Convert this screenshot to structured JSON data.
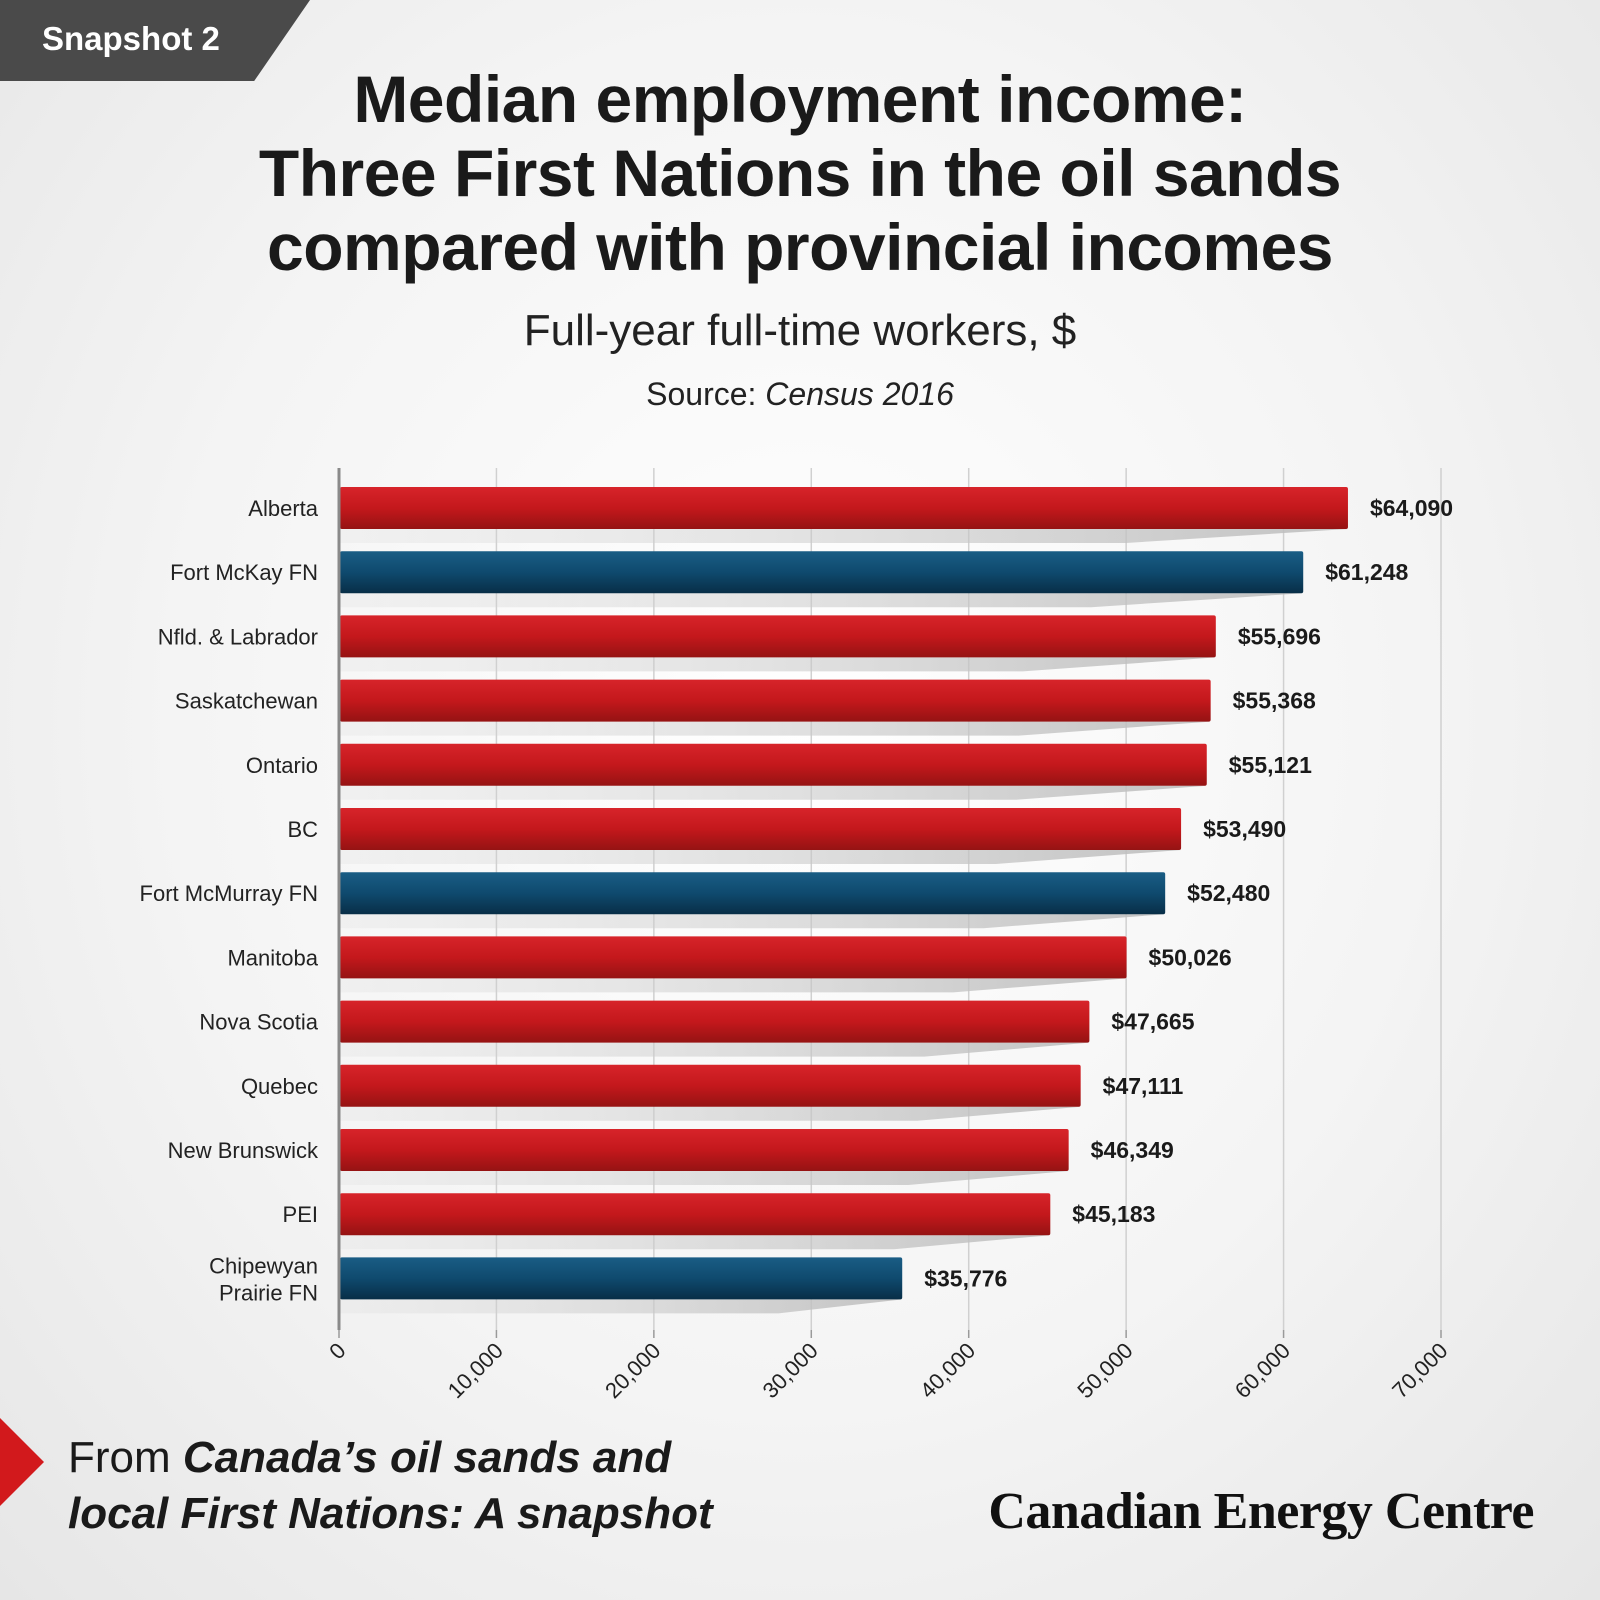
{
  "header": {
    "tag": "Snapshot 2",
    "title_lines": [
      "Median employment income:",
      "Three First Nations in the oil sands",
      "compared with provincial incomes"
    ],
    "subtitle": "Full-year full-time workers, $",
    "source_label": "Source:",
    "source_name": "Census 2016"
  },
  "footer": {
    "from_label": "From",
    "report_line1": "Canada’s oil sands and",
    "report_line2": "local First Nations: A snapshot",
    "brand": "Canadian Energy Centre"
  },
  "colors": {
    "province": "#c8191d",
    "first_nation": "#0f4a6e",
    "accent": "#d2191c",
    "grid": "#d0d0d0"
  },
  "chart_data": {
    "type": "bar",
    "orientation": "horizontal",
    "categories": [
      "Alberta",
      "Fort McKay FN",
      "Nfld. & Labrador",
      "Saskatchewan",
      "Ontario",
      "BC",
      "Fort McMurray FN",
      "Manitoba",
      "Nova Scotia",
      "Quebec",
      "New Brunswick",
      "PEI",
      "Chipewyan Prairie FN"
    ],
    "values": [
      64090,
      61248,
      55696,
      55368,
      55121,
      53490,
      52480,
      50026,
      47665,
      47111,
      46349,
      45183,
      35776
    ],
    "value_labels": [
      "$64,090",
      "$61,248",
      "$55,696",
      "$55,368",
      "$55,121",
      "$53,490",
      "$52,480",
      "$50,026",
      "$47,665",
      "$47,111",
      "$46,349",
      "$45,183",
      "$35,776"
    ],
    "groups": [
      "province",
      "first_nation",
      "province",
      "province",
      "province",
      "province",
      "first_nation",
      "province",
      "province",
      "province",
      "province",
      "province",
      "first_nation"
    ],
    "xlim": [
      0,
      70000
    ],
    "xticks": [
      0,
      10000,
      20000,
      30000,
      40000,
      50000,
      60000,
      70000
    ],
    "xtick_labels": [
      "0",
      "10,000",
      "20,000",
      "30,000",
      "40,000",
      "50,000",
      "60,000",
      "70,000"
    ],
    "grid": true,
    "title": "",
    "xlabel": "",
    "ylabel": ""
  }
}
